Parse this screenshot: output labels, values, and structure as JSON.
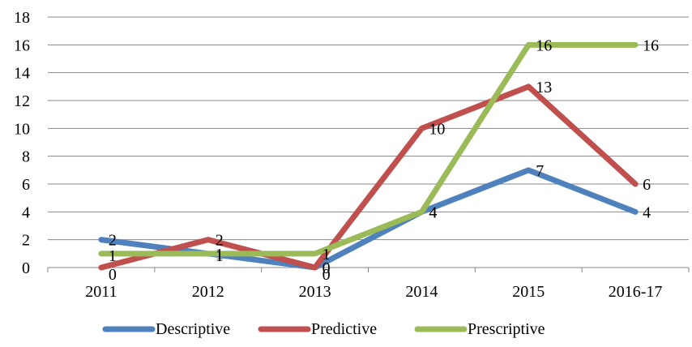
{
  "chart_data": {
    "type": "line",
    "categories": [
      "2011",
      "2012",
      "2013",
      "2014",
      "2015",
      "2016-17"
    ],
    "ylim": [
      0,
      18
    ],
    "yticks": [
      0,
      2,
      4,
      6,
      8,
      10,
      12,
      14,
      16,
      18
    ],
    "grid": true,
    "legend_position": "bottom",
    "series": [
      {
        "name": "Descriptive",
        "color": "#4F81BD",
        "values": [
          2,
          1,
          0,
          4,
          7,
          4
        ]
      },
      {
        "name": "Predictive",
        "color": "#C0504D",
        "values": [
          0,
          2,
          0,
          10,
          13,
          6
        ]
      },
      {
        "name": "Prescriptive",
        "color": "#9BBB59",
        "values": [
          1,
          1,
          1,
          4,
          16,
          16
        ]
      }
    ]
  }
}
